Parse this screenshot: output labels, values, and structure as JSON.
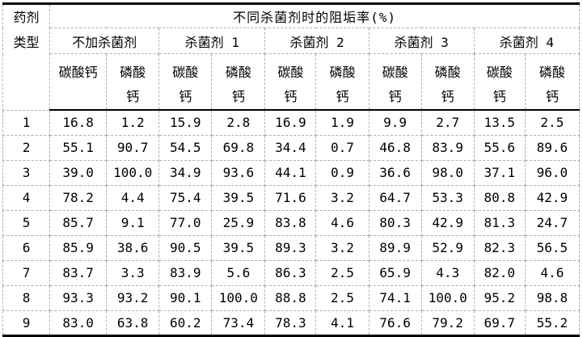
{
  "table": {
    "corner_header": "药剂\n类型",
    "title": "不同杀菌剂时的阻垢率(%)",
    "groups": [
      {
        "label": "不加杀菌剂",
        "col1": "碳酸钙",
        "col2": "磷酸\n钙"
      },
      {
        "label": "杀菌剂 1",
        "col1": "碳酸\n钙",
        "col2": "磷酸\n钙"
      },
      {
        "label": "杀菌剂 2",
        "col1": "碳酸\n钙",
        "col2": "磷酸\n钙"
      },
      {
        "label": "杀菌剂 3",
        "col1": "碳酸\n钙",
        "col2": "磷酸\n钙"
      },
      {
        "label": "杀菌剂 4",
        "col1": "碳酸\n钙",
        "col2": "磷酸\n钙"
      }
    ],
    "rows": [
      {
        "id": "1",
        "values": [
          "16.8",
          "1.2",
          "15.9",
          "2.8",
          "16.9",
          "1.9",
          "9.9",
          "2.7",
          "13.5",
          "2.5"
        ]
      },
      {
        "id": "2",
        "values": [
          "55.1",
          "90.7",
          "54.5",
          "69.8",
          "34.4",
          "0.7",
          "46.8",
          "83.9",
          "55.6",
          "89.6"
        ]
      },
      {
        "id": "3",
        "values": [
          "39.0",
          "100.0",
          "34.9",
          "93.6",
          "44.1",
          "0.9",
          "36.6",
          "98.0",
          "37.1",
          "96.0"
        ]
      },
      {
        "id": "4",
        "values": [
          "78.2",
          "4.4",
          "75.4",
          "39.5",
          "71.6",
          "3.2",
          "64.7",
          "53.3",
          "80.8",
          "42.9"
        ]
      },
      {
        "id": "5",
        "values": [
          "85.7",
          "9.1",
          "77.0",
          "25.9",
          "83.8",
          "4.6",
          "80.3",
          "42.9",
          "81.3",
          "24.7"
        ]
      },
      {
        "id": "6",
        "values": [
          "85.9",
          "38.6",
          "90.5",
          "39.5",
          "89.3",
          "3.2",
          "89.9",
          "52.9",
          "82.3",
          "56.5"
        ]
      },
      {
        "id": "7",
        "values": [
          "83.7",
          "3.3",
          "83.9",
          "5.6",
          "86.3",
          "2.5",
          "65.9",
          "4.3",
          "82.0",
          "4.6"
        ]
      },
      {
        "id": "8",
        "values": [
          "93.3",
          "93.2",
          "90.1",
          "100.0",
          "88.8",
          "2.5",
          "74.1",
          "100.0",
          "95.2",
          "98.8"
        ]
      },
      {
        "id": "9",
        "values": [
          "83.0",
          "63.8",
          "60.2",
          "73.4",
          "78.3",
          "4.1",
          "76.6",
          "79.2",
          "69.7",
          "55.2"
        ]
      }
    ]
  },
  "colors": {
    "background": "#ffffff",
    "text": "#000000",
    "outer_border": "#000000",
    "grid_dashed": "#b0b0b0"
  }
}
